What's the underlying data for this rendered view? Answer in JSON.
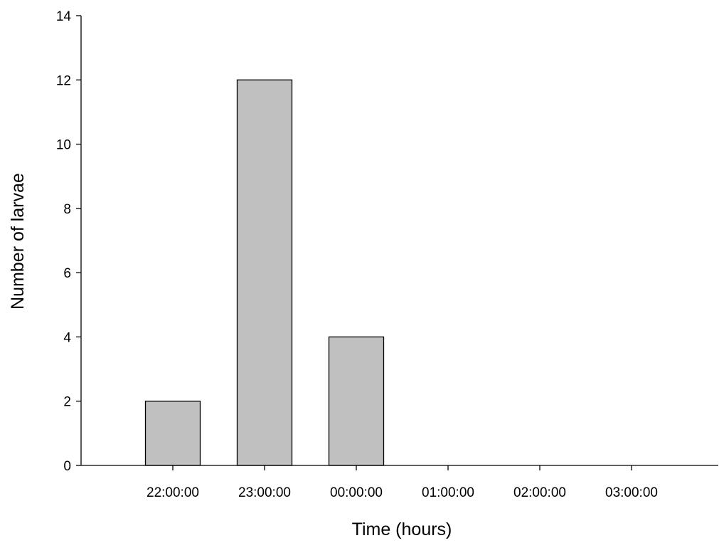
{
  "chart_data": {
    "type": "bar",
    "title": "",
    "xlabel": "Time (hours)",
    "ylabel": "Number of larvae",
    "categories": [
      "22:00:00",
      "23:00:00",
      "00:00:00",
      "01:00:00",
      "02:00:00",
      "03:00:00"
    ],
    "values": [
      2,
      12,
      4,
      0,
      0,
      0
    ],
    "ylim": [
      0,
      14
    ],
    "yticks": [
      0,
      2,
      4,
      6,
      8,
      10,
      12,
      14
    ],
    "grid": false,
    "legend": "none",
    "bar_color": "#c0c0c0",
    "edge_color": "#000000"
  }
}
